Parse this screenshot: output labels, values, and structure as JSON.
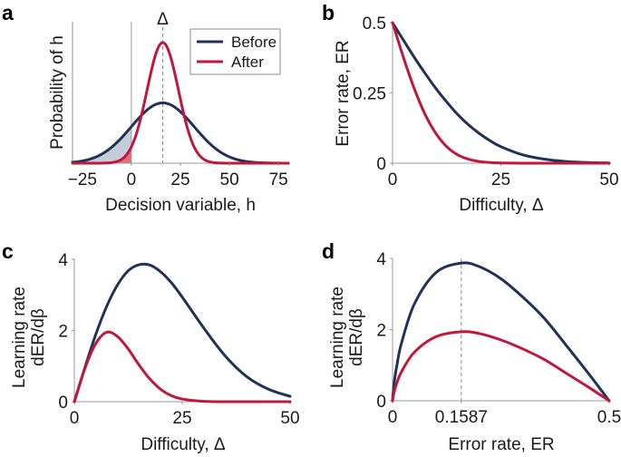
{
  "colors": {
    "before": "#1f3358",
    "after": "#c0183a",
    "before_fill": "#c6ccd8",
    "after_fill": "#e0707e"
  },
  "legend": {
    "entries": [
      "Before",
      "After"
    ]
  },
  "chart_data": [
    {
      "panel": "a",
      "type": "line",
      "title": "",
      "xlabel": "Decision variable, h",
      "ylabel": "Probability of h",
      "xlim": [
        -30,
        80
      ],
      "xticks": [
        -25,
        0,
        25,
        50,
        75
      ],
      "xtick_labels": [
        "−25",
        "0",
        "25",
        "50",
        "75"
      ],
      "annotation": "Δ",
      "annotation_x": 16,
      "legend_position": "top-right",
      "series": [
        {
          "name": "Before",
          "distribution": "gaussian",
          "mean": 16,
          "sd": 16,
          "shaded_below": 0
        },
        {
          "name": "After",
          "distribution": "gaussian",
          "mean": 16,
          "sd": 8,
          "shaded_below": 0
        }
      ]
    },
    {
      "panel": "b",
      "type": "line",
      "xlabel": "Difficulty, Δ",
      "ylabel": "Error rate, ER",
      "xlim": [
        0,
        50
      ],
      "ylim": [
        0,
        0.5
      ],
      "xticks": [
        0,
        25,
        50
      ],
      "xtick_labels": [
        "0",
        "25",
        "50"
      ],
      "yticks": [
        0,
        0.25,
        0.5
      ],
      "ytick_labels": [
        "0",
        "0.25",
        "0.5"
      ],
      "x": [
        0,
        2.5,
        5,
        7.5,
        10,
        12.5,
        15,
        17.5,
        20,
        22.5,
        25,
        30,
        35,
        40,
        45,
        50
      ],
      "series": [
        {
          "name": "Before",
          "values": [
            0.5,
            0.438,
            0.377,
            0.32,
            0.266,
            0.218,
            0.174,
            0.137,
            0.106,
            0.08,
            0.059,
            0.03,
            0.0144,
            0.0062,
            0.0025,
            0.0009
          ]
        },
        {
          "name": "After",
          "values": [
            0.5,
            0.377,
            0.266,
            0.174,
            0.106,
            0.059,
            0.03,
            0.0144,
            0.0062,
            0.0024,
            0.0009,
            0.0001,
            0,
            0,
            0,
            0
          ]
        }
      ]
    },
    {
      "panel": "c",
      "type": "line",
      "xlabel": "Difficulty, Δ",
      "ylabel": "Learning rate",
      "ylabel2": "dER/dβ",
      "xlim": [
        0,
        50
      ],
      "ylim": [
        0,
        4
      ],
      "xticks": [
        0,
        25,
        50
      ],
      "xtick_labels": [
        "0",
        "25",
        "50"
      ],
      "yticks": [
        0,
        2,
        4
      ],
      "ytick_labels": [
        "0",
        "2",
        "4"
      ],
      "x": [
        0,
        2.5,
        5,
        7.5,
        10,
        12.5,
        15,
        17.5,
        20,
        22.5,
        25,
        30,
        35,
        40,
        45,
        50
      ],
      "series": [
        {
          "name": "Before",
          "values": [
            0,
            0.98,
            1.9,
            2.68,
            3.28,
            3.68,
            3.85,
            3.84,
            3.65,
            3.34,
            2.94,
            2.07,
            1.28,
            0.7,
            0.35,
            0.15
          ]
        },
        {
          "name": "After",
          "values": [
            0,
            0.95,
            1.64,
            1.95,
            1.83,
            1.48,
            1.03,
            0.64,
            0.35,
            0.17,
            0.075,
            0.01,
            0,
            0,
            0,
            0
          ]
        }
      ]
    },
    {
      "panel": "d",
      "type": "line",
      "xlabel": "Error rate, ER",
      "ylabel": "Learning rate",
      "ylabel2": "dER/dβ",
      "xlim": [
        0,
        0.5
      ],
      "ylim": [
        0,
        4
      ],
      "xticks": [
        0,
        0.1587,
        0.5
      ],
      "xtick_labels": [
        "0",
        "0.1587",
        "0.5"
      ],
      "yticks": [
        0,
        2,
        4
      ],
      "ytick_labels": [
        "0",
        "2",
        "4"
      ],
      "vline_x": 0.1587,
      "x": [
        0,
        0.001,
        0.005,
        0.01,
        0.02,
        0.05,
        0.1,
        0.1587,
        0.2,
        0.25,
        0.3,
        0.35,
        0.4,
        0.45,
        0.5
      ],
      "series": [
        {
          "name": "Before",
          "values": [
            0,
            0.17,
            0.62,
            0.99,
            1.59,
            2.71,
            3.6,
            3.87,
            3.77,
            3.43,
            2.92,
            2.32,
            1.57,
            0.8,
            0
          ]
        },
        {
          "name": "After",
          "values": [
            0,
            0.08,
            0.31,
            0.5,
            0.8,
            1.36,
            1.8,
            1.94,
            1.89,
            1.71,
            1.46,
            1.16,
            0.78,
            0.4,
            0
          ]
        }
      ]
    }
  ]
}
